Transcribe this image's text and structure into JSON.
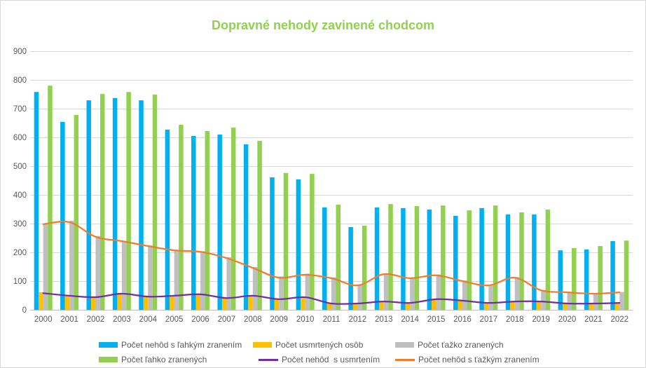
{
  "chart_data": {
    "type": "bar",
    "title": "Dopravné nehody zavinené chodcom",
    "title_color": "#92D050",
    "xlabel": "",
    "ylabel": "",
    "ylim": [
      0,
      900
    ],
    "yticks": [
      0,
      100,
      200,
      300,
      400,
      500,
      600,
      700,
      800,
      900
    ],
    "grid": true,
    "legend": "bottom",
    "categories": [
      "2000",
      "2001",
      "2002",
      "2003",
      "2004",
      "2005",
      "2006",
      "2007",
      "2008",
      "2009",
      "2010",
      "2011",
      "2012",
      "2013",
      "2014",
      "2015",
      "2016",
      "2017",
      "2018",
      "2019",
      "2020",
      "2021",
      "2022"
    ],
    "series": [
      {
        "name": "Počet nehôd s ľahkým zranením",
        "type": "bar",
        "color": "#00B0F0",
        "values": [
          758,
          654,
          729,
          737,
          729,
          627,
          605,
          610,
          576,
          461,
          454,
          356,
          288,
          356,
          354,
          349,
          327,
          354,
          332,
          332,
          207,
          210,
          239
        ]
      },
      {
        "name": "Počet usmrtených osôb",
        "type": "bar",
        "color": "#FFC000",
        "values": [
          61,
          52,
          47,
          58,
          48,
          50,
          55,
          43,
          51,
          38,
          46,
          23,
          23,
          30,
          25,
          38,
          33,
          25,
          30,
          30,
          23,
          23,
          25
        ]
      },
      {
        "name": "Počet ťažko zranených",
        "type": "bar",
        "color": "#BFBFBF",
        "values": [
          300,
          310,
          257,
          240,
          224,
          209,
          204,
          183,
          149,
          116,
          126,
          113,
          87,
          127,
          113,
          123,
          102,
          87,
          114,
          69,
          62,
          58,
          62
        ]
      },
      {
        "name": "Počet ľahko zranených",
        "type": "bar",
        "color": "#92D050",
        "values": [
          780,
          678,
          751,
          758,
          749,
          644,
          622,
          634,
          588,
          476,
          473,
          366,
          293,
          368,
          361,
          363,
          346,
          363,
          339,
          349,
          215,
          222,
          241
        ]
      },
      {
        "name": "Počet nehôd  s usmrtením",
        "type": "line",
        "color": "#7030A0",
        "values": [
          58,
          49,
          44,
          56,
          46,
          49,
          54,
          41,
          49,
          37,
          44,
          22,
          22,
          29,
          24,
          37,
          32,
          24,
          29,
          29,
          22,
          22,
          24
        ]
      },
      {
        "name": "Počet nehôd s ťažkým zranením",
        "type": "line",
        "color": "#ED7D31",
        "values": [
          298,
          305,
          254,
          239,
          222,
          207,
          202,
          180,
          146,
          112,
          122,
          110,
          85,
          124,
          110,
          120,
          100,
          85,
          112,
          68,
          61,
          56,
          61
        ]
      }
    ]
  }
}
